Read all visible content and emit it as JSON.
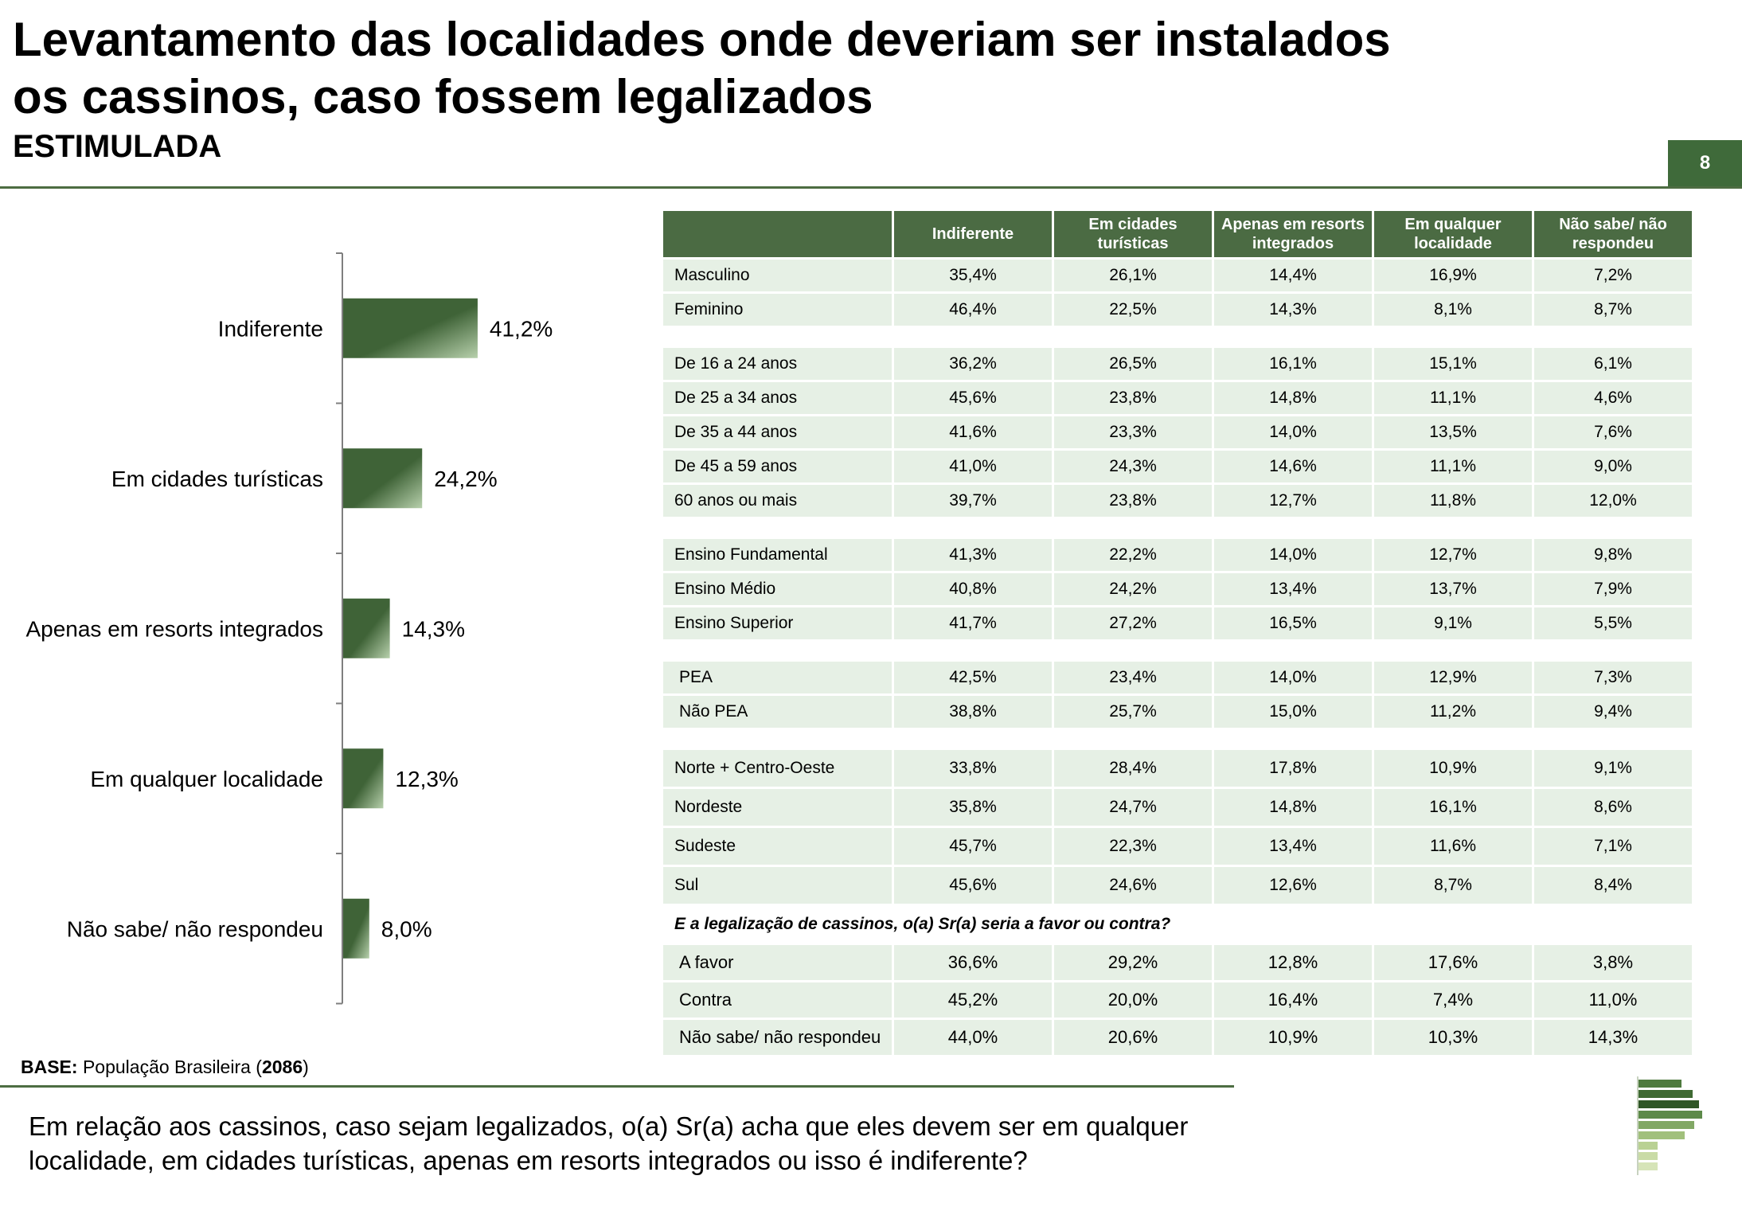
{
  "title_line1": "Levantamento das localidades onde deveriam ser instalados",
  "title_line2": "os cassinos, caso fossem legalizados",
  "subtitle": "ESTIMULADA",
  "page_number": "8",
  "base": {
    "label": "BASE:",
    "text": "População Brasileira",
    "n": "2086"
  },
  "question": "Em relação aos cassinos, caso sejam legalizados, o(a) Sr(a) acha que eles devem ser em qualquer localidade, em cidades turísticas, apenas em resorts integrados ou isso é indiferente?",
  "chart_data": {
    "type": "bar",
    "orientation": "horizontal",
    "categories": [
      "Indiferente",
      "Em cidades turísticas",
      "Apenas em resorts integrados",
      "Em qualquer localidade",
      "Não sabe/ não respondeu"
    ],
    "values": [
      41.2,
      24.2,
      14.3,
      12.3,
      8.0
    ],
    "value_labels": [
      "41,2%",
      "24,2%",
      "14,3%",
      "12,3%",
      "8,0%"
    ],
    "unit": "%",
    "xlim": [
      0,
      100
    ],
    "grid": false,
    "colors": {
      "bar_dark": "#3f6337",
      "bar_light": "#b7d0ac"
    }
  },
  "table": {
    "headers": [
      "Indiferente",
      "Em cidades turísticas",
      "Apenas em resorts integrados",
      "Em qualquer localidade",
      "Não sabe/ não respondeu"
    ],
    "groups": [
      {
        "rows": [
          {
            "label": "Masculino",
            "values": [
              "35,4%",
              "26,1%",
              "14,4%",
              "16,9%",
              "7,2%"
            ]
          },
          {
            "label": "Feminino",
            "values": [
              "46,4%",
              "22,5%",
              "14,3%",
              "8,1%",
              "8,7%"
            ]
          }
        ]
      },
      {
        "rows": [
          {
            "label": "De 16 a 24 anos",
            "values": [
              "36,2%",
              "26,5%",
              "16,1%",
              "15,1%",
              "6,1%"
            ]
          },
          {
            "label": "De 25 a 34 anos",
            "values": [
              "45,6%",
              "23,8%",
              "14,8%",
              "11,1%",
              "4,6%"
            ]
          },
          {
            "label": "De 35 a 44 anos",
            "values": [
              "41,6%",
              "23,3%",
              "14,0%",
              "13,5%",
              "7,6%"
            ]
          },
          {
            "label": "De 45 a 59 anos",
            "values": [
              "41,0%",
              "24,3%",
              "14,6%",
              "11,1%",
              "9,0%"
            ]
          },
          {
            "label": "60 anos ou mais",
            "values": [
              "39,7%",
              "23,8%",
              "12,7%",
              "11,8%",
              "12,0%"
            ]
          }
        ]
      },
      {
        "rows": [
          {
            "label": "Ensino Fundamental",
            "values": [
              "41,3%",
              "22,2%",
              "14,0%",
              "12,7%",
              "9,8%"
            ]
          },
          {
            "label": "Ensino Médio",
            "values": [
              "40,8%",
              "24,2%",
              "13,4%",
              "13,7%",
              "7,9%"
            ]
          },
          {
            "label": "Ensino Superior",
            "values": [
              "41,7%",
              "27,2%",
              "16,5%",
              "9,1%",
              "5,5%"
            ]
          }
        ]
      },
      {
        "rows": [
          {
            "label": "PEA",
            "values": [
              "42,5%",
              "23,4%",
              "14,0%",
              "12,9%",
              "7,3%"
            ]
          },
          {
            "label": "Não PEA",
            "values": [
              "38,8%",
              "25,7%",
              "15,0%",
              "11,2%",
              "9,4%"
            ]
          }
        ]
      },
      {
        "rows": [
          {
            "label": "Norte + Centro-Oeste",
            "values": [
              "33,8%",
              "28,4%",
              "17,8%",
              "10,9%",
              "9,1%"
            ]
          },
          {
            "label": "Nordeste",
            "values": [
              "35,8%",
              "24,7%",
              "14,8%",
              "16,1%",
              "8,6%"
            ]
          },
          {
            "label": "Sudeste",
            "values": [
              "45,7%",
              "22,3%",
              "13,4%",
              "11,6%",
              "7,1%"
            ]
          },
          {
            "label": "Sul",
            "values": [
              "45,6%",
              "24,6%",
              "12,6%",
              "8,7%",
              "8,4%"
            ]
          }
        ]
      }
    ],
    "sub_question": "E a legalização de cassinos, o(a) Sr(a) seria a favor ou contra?",
    "sub_rows": [
      {
        "label": "A favor",
        "values": [
          "36,6%",
          "29,2%",
          "12,8%",
          "17,6%",
          "3,8%"
        ]
      },
      {
        "label": "Contra",
        "values": [
          "45,2%",
          "20,0%",
          "16,4%",
          "7,4%",
          "11,0%"
        ]
      },
      {
        "label": "Não sabe/ não respondeu",
        "values": [
          "44,0%",
          "20,6%",
          "10,9%",
          "10,3%",
          "14,3%"
        ]
      }
    ]
  },
  "colors": {
    "brand_green": "#3f6a3a",
    "header_green": "#4b6b43",
    "row_bg": "#e6f0e5"
  }
}
